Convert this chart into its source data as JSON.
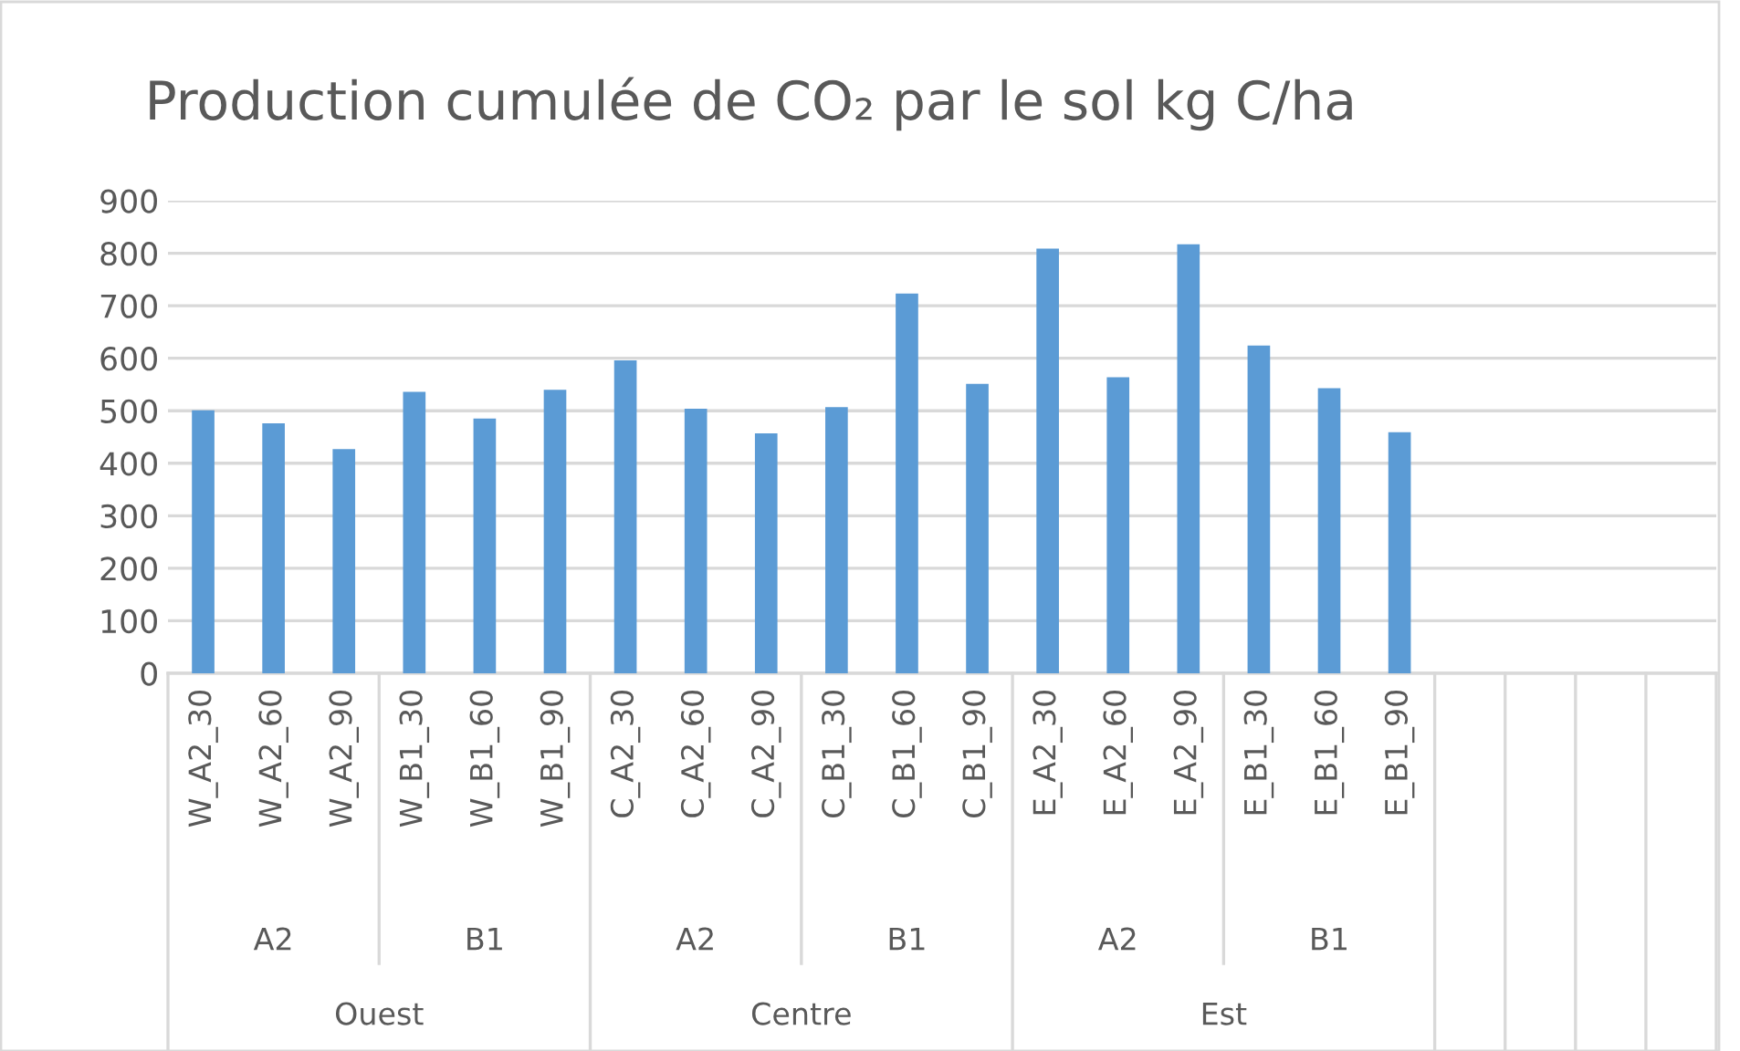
{
  "chart_data": {
    "type": "bar",
    "title": "Production cumulée de CO₂ par le sol kg C/ha",
    "categories": [
      "W_A2_30",
      "W_A2_60",
      "W_A2_90",
      "W_B1_30",
      "W_B1_60",
      "W_B1_90",
      "C_A2_30",
      "C_A2_60",
      "C_A2_90",
      "C_B1_30",
      "C_B1_60",
      "C_B1_90",
      "E_A2_30",
      "E_A2_60",
      "E_A2_90",
      "E_B1_30",
      "E_B1_60",
      "E_B1_90",
      null,
      null,
      null,
      null
    ],
    "values": [
      501,
      476,
      427,
      536,
      485,
      540,
      596,
      504,
      457,
      507,
      723,
      551,
      809,
      564,
      817,
      624,
      543,
      459,
      null,
      null,
      null,
      null
    ],
    "color": "#5b9bd5",
    "ylim": [
      0,
      900
    ],
    "yticks": [
      0,
      100,
      200,
      300,
      400,
      500,
      600,
      700,
      800,
      900
    ],
    "grid": "y",
    "annotations": [
      "A2",
      "B1",
      "A2",
      "B1",
      "A2",
      "B1",
      "Ouest",
      "Centre",
      "Est"
    ]
  }
}
